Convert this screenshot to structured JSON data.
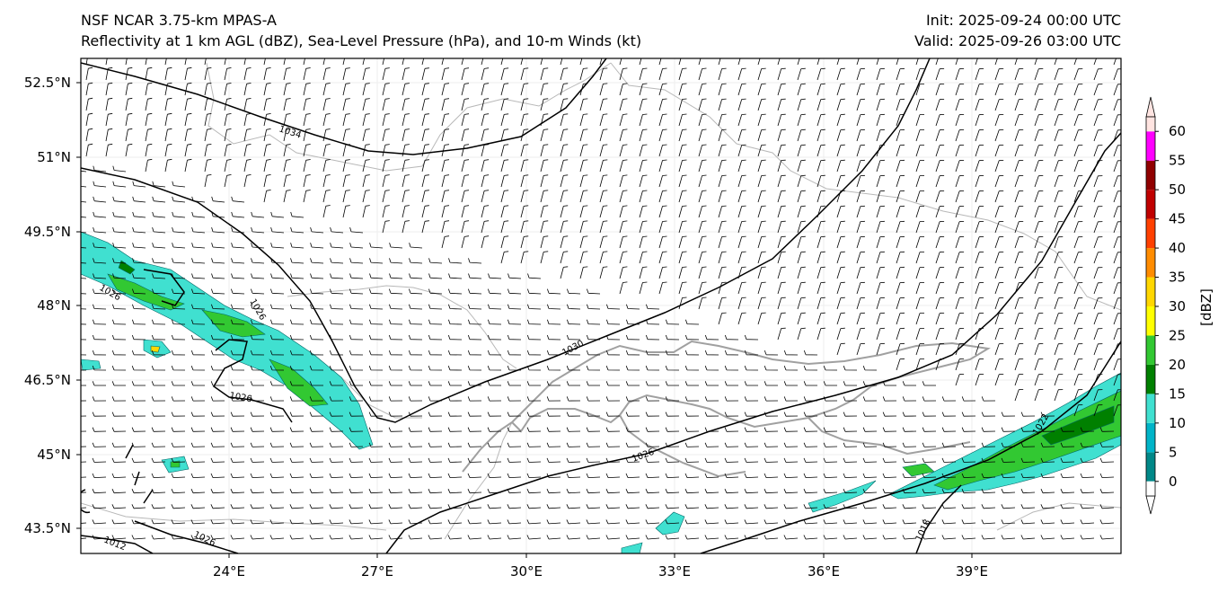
{
  "header": {
    "model": "NSF NCAR 3.75-km MPAS-A",
    "fields": "Reflectivity at 1 km AGL (dBZ), Sea-Level Pressure (hPa), and 10-m Winds (kt)",
    "init": "Init: 2025-09-24 00:00 UTC",
    "valid": "Valid: 2025-09-26 03:00 UTC"
  },
  "axes": {
    "lon_labels": [
      "24°E",
      "27°E",
      "30°E",
      "33°E",
      "36°E",
      "39°E"
    ],
    "lat_labels": [
      "52.5°N",
      "51°N",
      "49.5°N",
      "48°N",
      "46.5°N",
      "45°N",
      "43.5°N"
    ],
    "lon_range": [
      21.0,
      42.0
    ],
    "lat_range": [
      43.0,
      53.0
    ]
  },
  "colorbar": {
    "unit_label": "[dBZ]",
    "ticks": [
      "0",
      "5",
      "10",
      "15",
      "20",
      "25",
      "30",
      "35",
      "40",
      "45",
      "50",
      "55",
      "60"
    ],
    "colors": [
      "#008888",
      "#00b4c8",
      "#40e0d0",
      "#008000",
      "#32c832",
      "#ffff00",
      "#ffd700",
      "#ff8c00",
      "#ff4000",
      "#c00000",
      "#900000",
      "#ff00ff",
      "#ffe4e1"
    ]
  },
  "isobars": [
    {
      "label": "1034"
    },
    {
      "label": "1030"
    },
    {
      "label": "1026"
    },
    {
      "label": "1026"
    },
    {
      "label": "1026"
    },
    {
      "label": "1026"
    },
    {
      "label": "1026"
    },
    {
      "label": "1022"
    },
    {
      "label": "1018"
    },
    {
      "label": "1012"
    }
  ]
}
